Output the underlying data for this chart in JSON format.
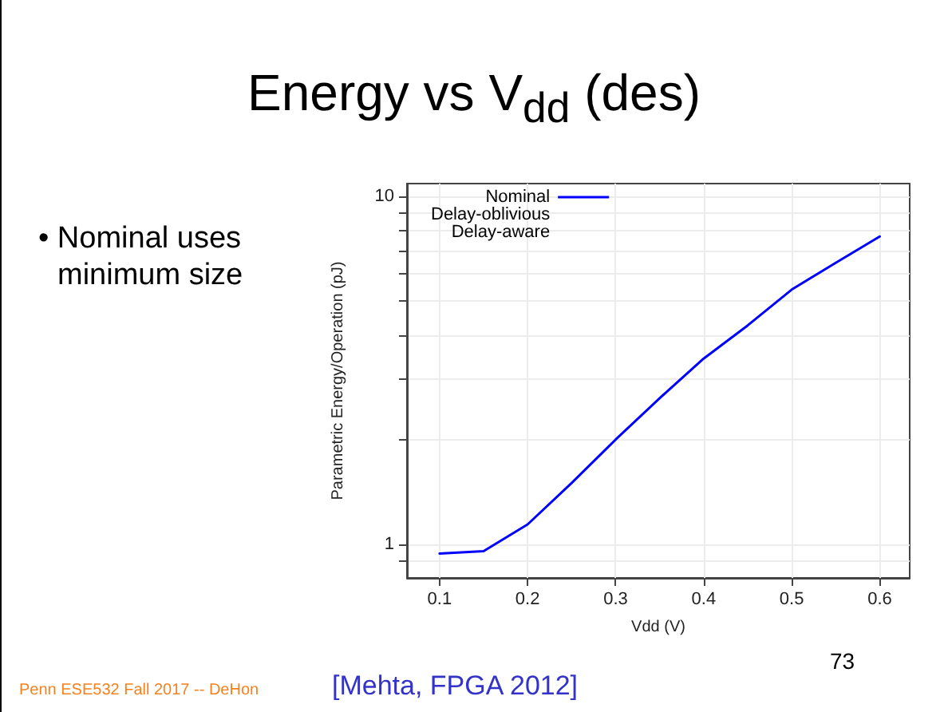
{
  "chart_data": {
    "type": "line",
    "title": "Energy vs V$_{dd}$ (des)",
    "xlabel": "Vdd (V)",
    "ylabel": "Parametric Energy/Operation (pJ)",
    "annotations": [
      "• Nominal uses minimum size",
      "Penn ESE532 Fall 2017 -- DeHon",
      "[Mehta,  FPGA 2012]",
      "73"
    ],
    "x": [
      0.1,
      0.15,
      0.2,
      0.25,
      0.3,
      0.35,
      0.4,
      0.45,
      0.5,
      0.55,
      0.6
    ],
    "series": [
      {
        "name": "Nominal",
        "color": "#0000ff",
        "values": [
          0.94,
          0.955,
          1.14,
          1.5,
          2.0,
          2.63,
          3.42,
          4.26,
          5.4,
          6.45,
          7.68
        ]
      },
      {
        "name": "Delay-oblivious",
        "values": [
          null,
          null,
          null,
          null,
          null,
          null,
          null,
          null,
          null,
          null,
          null
        ]
      },
      {
        "name": "Delay-aware",
        "values": [
          null,
          null,
          null,
          null,
          null,
          null,
          null,
          null,
          null,
          null,
          null
        ]
      }
    ],
    "log": "y",
    "xlim": [
      0.063,
      0.634
    ],
    "ylim": [
      0.8,
      10.9
    ],
    "xticks": [
      0.1,
      0.2,
      0.3,
      0.4,
      0.5,
      0.6
    ],
    "yticks": [
      {
        "value": 0.9,
        "label": null
      },
      1,
      {
        "value": 2,
        "label": null
      },
      {
        "value": 3,
        "label": null
      },
      {
        "value": 4,
        "label": null
      },
      {
        "value": 5,
        "label": null
      },
      {
        "value": 6,
        "label": null
      },
      {
        "value": 7,
        "label": null
      },
      {
        "value": 8,
        "label": null
      },
      {
        "value": 9,
        "label": null
      },
      10
    ],
    "grid": true,
    "legend": "top left",
    "marker": "none",
    "line_style": "solid"
  }
}
